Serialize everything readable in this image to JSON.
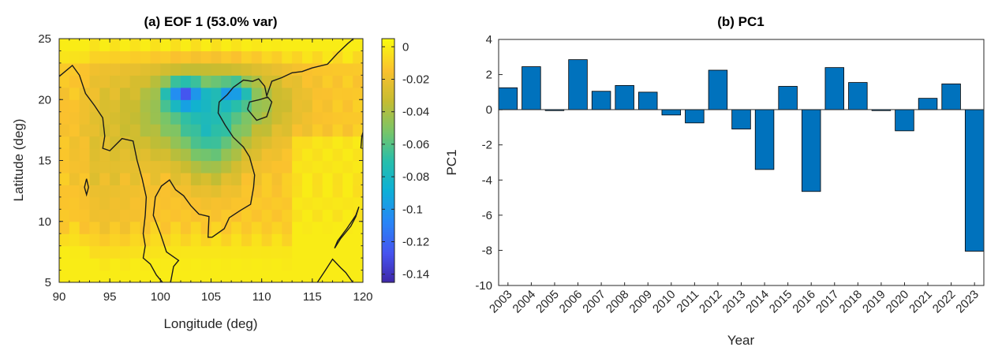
{
  "chart_data": [
    {
      "type": "heatmap",
      "title": "(a) EOF 1 (53.0% var)",
      "xlabel": "Longitude (deg)",
      "ylabel": "Latitude (deg)",
      "xlim": [
        90,
        120
      ],
      "ylim": [
        5,
        25
      ],
      "xticks": [
        "90",
        "95",
        "100",
        "105",
        "110",
        "115",
        "120"
      ],
      "yticks": [
        "5",
        "10",
        "15",
        "20",
        "25"
      ],
      "colorbar": {
        "range": [
          -0.145,
          0.005
        ],
        "ticks": [
          "0",
          "-0.02",
          "-0.04",
          "-0.06",
          "-0.08",
          "-0.1",
          "-0.12",
          "-0.14"
        ],
        "colormap": "parula"
      },
      "grid_resolution_deg": 1.0,
      "minimum": {
        "lon": 102.5,
        "lat": 20.5,
        "value": -0.14
      }
    },
    {
      "type": "bar",
      "title": "(b) PC1",
      "xlabel": "Year",
      "ylabel": "PC1",
      "ylim": [
        -10,
        4
      ],
      "yticks": [
        "4",
        "2",
        "0",
        "-2",
        "-4",
        "-6",
        "-8",
        "-10"
      ],
      "categories": [
        "2003",
        "2004",
        "2005",
        "2006",
        "2007",
        "2008",
        "2009",
        "2010",
        "2011",
        "2012",
        "2013",
        "2014",
        "2015",
        "2016",
        "2017",
        "2018",
        "2019",
        "2020",
        "2021",
        "2022",
        "2023"
      ],
      "values": [
        1.25,
        2.45,
        -0.05,
        2.85,
        1.05,
        1.38,
        1.0,
        -0.3,
        -0.75,
        2.25,
        -1.1,
        -3.4,
        1.33,
        -4.65,
        2.4,
        1.55,
        -0.05,
        -1.2,
        0.65,
        1.47,
        -8.05
      ],
      "bar_color": "#0072BD"
    }
  ],
  "colors": {
    "bar": "#0072BD",
    "edge": "#000000",
    "coast": "#1a1a1a"
  }
}
